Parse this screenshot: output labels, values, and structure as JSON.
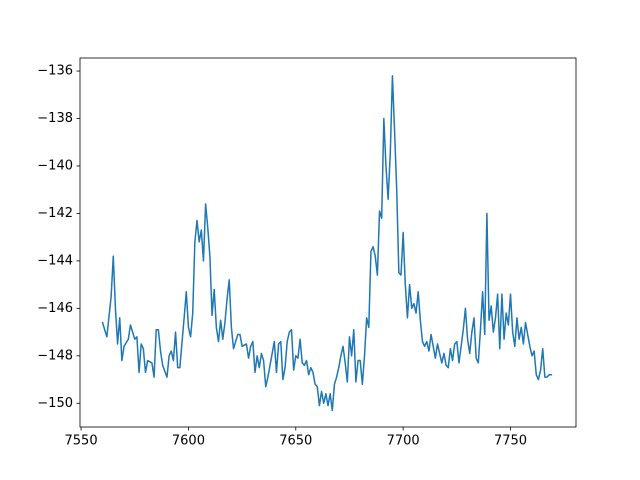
{
  "chart_data": {
    "type": "line",
    "x": [
      7560,
      7562,
      7564,
      7565,
      7566,
      7567,
      7568,
      7569,
      7570,
      7572,
      7573,
      7575,
      7576,
      7577,
      7578,
      7579,
      7580,
      7581,
      7583,
      7584,
      7585,
      7586,
      7587,
      7588,
      7590,
      7591,
      7592,
      7593,
      7594,
      7595,
      7596,
      7598,
      7599,
      7600,
      7601,
      7602,
      7603,
      7604,
      7605,
      7606,
      7607,
      7608,
      7609,
      7610,
      7611,
      7612,
      7613,
      7614,
      7615,
      7616,
      7617,
      7618,
      7619,
      7620,
      7621,
      7622,
      7623,
      7624,
      7625,
      7627,
      7628,
      7629,
      7630,
      7631,
      7632,
      7633,
      7634,
      7635,
      7636,
      7637,
      7638,
      7640,
      7641,
      7642,
      7643,
      7644,
      7645,
      7646,
      7647,
      7648,
      7649,
      7650,
      7651,
      7652,
      7653,
      7654,
      7655,
      7656,
      7657,
      7658,
      7659,
      7660,
      7661,
      7662,
      7663,
      7664,
      7665,
      7666,
      7667,
      7668,
      7669,
      7670,
      7671,
      7672,
      7673,
      7674,
      7675,
      7676,
      7677,
      7678,
      7679,
      7680,
      7681,
      7682,
      7683,
      7684,
      7685,
      7686,
      7687,
      7688,
      7689,
      7690,
      7691,
      7692,
      7693,
      7694,
      7695,
      7696,
      7697,
      7698,
      7699,
      7700,
      7701,
      7702,
      7703,
      7704,
      7705,
      7706,
      7707,
      7708,
      7709,
      7710,
      7711,
      7712,
      7713,
      7714,
      7715,
      7716,
      7717,
      7718,
      7719,
      7720,
      7721,
      7722,
      7723,
      7724,
      7725,
      7726,
      7727,
      7728,
      7729,
      7730,
      7731,
      7732,
      7733,
      7734,
      7735,
      7736,
      7737,
      7738,
      7739,
      7740,
      7741,
      7742,
      7743,
      7744,
      7745,
      7746,
      7747,
      7748,
      7749,
      7750,
      7751,
      7752,
      7753,
      7754,
      7755,
      7756,
      7757,
      7758,
      7759,
      7760,
      7761,
      7762,
      7763,
      7764,
      7765,
      7766,
      7767,
      7768,
      7769
    ],
    "series": [
      {
        "color": "#1f77b4",
        "values": [
          -146.6,
          -147.2,
          -145.5,
          -143.8,
          -146,
          -147.5,
          -146.4,
          -148.2,
          -147.6,
          -147.3,
          -146.7,
          -147.3,
          -147.2,
          -148.7,
          -147.5,
          -147.7,
          -148.7,
          -148.2,
          -148.3,
          -148.9,
          -146.9,
          -146.9,
          -147.8,
          -148.4,
          -148.9,
          -148,
          -147.8,
          -148.2,
          -147,
          -148.5,
          -148.5,
          -146.4,
          -145.3,
          -146.8,
          -147.2,
          -146.2,
          -143.2,
          -142.3,
          -143.2,
          -142.7,
          -144,
          -141.6,
          -142.6,
          -143.8,
          -146.3,
          -145.2,
          -146.8,
          -147.4,
          -146.5,
          -147.3,
          -146.6,
          -145.6,
          -144.8,
          -146.8,
          -147.7,
          -147.4,
          -147.1,
          -147.1,
          -147.6,
          -147.5,
          -148.1,
          -147.6,
          -147.4,
          -148.7,
          -148,
          -148.5,
          -147.9,
          -148.2,
          -149.3,
          -148.9,
          -148.4,
          -147.4,
          -148.7,
          -147.5,
          -147.4,
          -149,
          -148.5,
          -147.4,
          -147,
          -146.9,
          -148.6,
          -148,
          -148.1,
          -147.3,
          -148.3,
          -148.4,
          -148.2,
          -148.8,
          -148.5,
          -148.7,
          -149.2,
          -149.3,
          -150.1,
          -149.5,
          -150,
          -149.6,
          -150.1,
          -149.6,
          -150.3,
          -149.2,
          -148.9,
          -148.5,
          -148,
          -147.6,
          -148.3,
          -149.1,
          -147.2,
          -148,
          -146.9,
          -149.1,
          -148.2,
          -148.2,
          -149.2,
          -148,
          -146.4,
          -146.8,
          -143.6,
          -143.4,
          -143.8,
          -144.6,
          -141.9,
          -142.2,
          -138,
          -140,
          -141.4,
          -139.5,
          -136.2,
          -138.5,
          -141,
          -144.5,
          -144.6,
          -142.8,
          -145,
          -146.4,
          -145,
          -146,
          -145.8,
          -146.2,
          -145.3,
          -146.5,
          -147.4,
          -147.6,
          -147.4,
          -147.8,
          -147.1,
          -147.6,
          -148.1,
          -147.5,
          -147.9,
          -148.3,
          -147.9,
          -148.4,
          -148.5,
          -147.7,
          -148.2,
          -147.5,
          -147.4,
          -148.3,
          -147.6,
          -146.9,
          -146,
          -147.3,
          -147.9,
          -147,
          -146.4,
          -148.1,
          -148.3,
          -146.9,
          -145.3,
          -147.1,
          -142,
          -146.5,
          -145.9,
          -147,
          -146.4,
          -145.4,
          -147.7,
          -145.4,
          -147.3,
          -146.2,
          -146.7,
          -145.4,
          -147,
          -147.6,
          -146.4,
          -147.3,
          -146.8,
          -147.5,
          -146.6,
          -147.1,
          -147.6,
          -148,
          -147.8,
          -148.8,
          -149,
          -148.6,
          -147.7,
          -148.9,
          -148.9,
          -148.8,
          -148.8
        ]
      }
    ],
    "xlim": [
      7549.5,
      7780.5
    ],
    "xticks": [
      7550,
      7600,
      7650,
      7700,
      7750
    ],
    "ylim": [
      -151.0,
      -135.45
    ],
    "yticks": [
      {
        "value": -150,
        "label": "−150"
      },
      {
        "value": -148,
        "label": "−148"
      },
      {
        "value": -146,
        "label": "−146"
      },
      {
        "value": -144,
        "label": "−144"
      },
      {
        "value": -142,
        "label": "−142"
      },
      {
        "value": -140,
        "label": "−140"
      },
      {
        "value": -138,
        "label": "−138"
      },
      {
        "value": -136,
        "label": "−136"
      }
    ],
    "grid": false
  }
}
